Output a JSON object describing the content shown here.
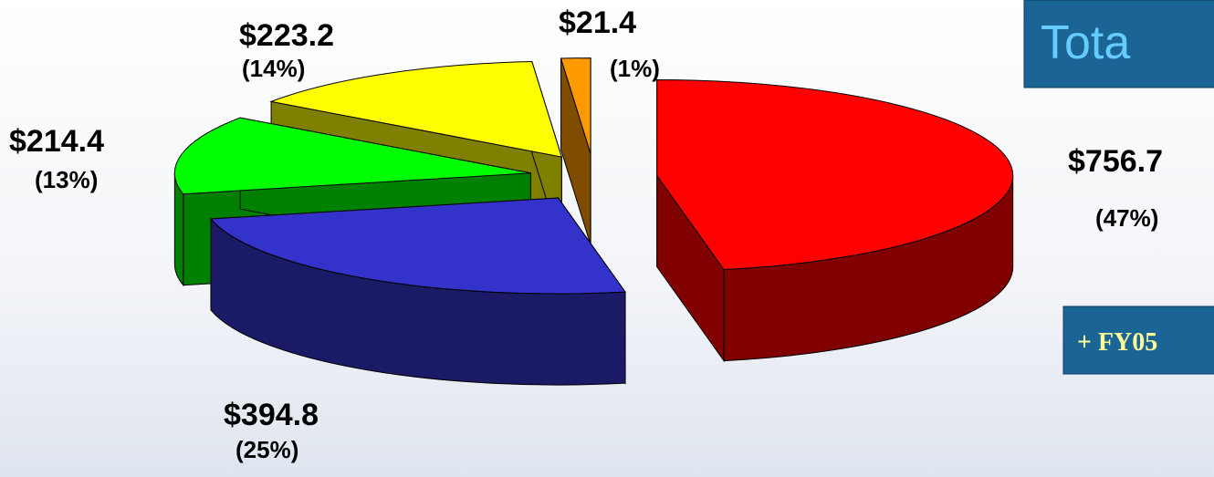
{
  "chart_data": {
    "type": "pie",
    "title": "Tota",
    "annotation": "+ FY05",
    "categories": [
      null,
      null,
      null,
      null,
      null
    ],
    "series": [
      {
        "name": null,
        "values": [
          756.7,
          394.8,
          214.4,
          223.2,
          21.4
        ],
        "value_labels": [
          "$756.7",
          "$394.8",
          "$214.4",
          "$223.2",
          "$21.4"
        ],
        "colors": [
          "#ff0000",
          "#3333cc",
          "#00ff00",
          "#ffff00",
          "#ff9900"
        ]
      }
    ],
    "percents": [
      47,
      25,
      13,
      14,
      1
    ],
    "percent_labels": [
      "(47%)",
      "(25%)",
      "(13%)",
      "(14%)",
      "(1%)"
    ]
  }
}
